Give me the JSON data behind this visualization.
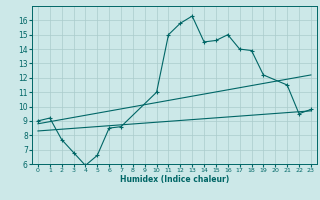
{
  "xlabel": "Humidex (Indice chaleur)",
  "ylabel": "",
  "bg_color": "#cce8e8",
  "grid_color": "#aacccc",
  "line_color": "#006666",
  "xlim": [
    -0.5,
    23.5
  ],
  "ylim": [
    6,
    17
  ],
  "xticks": [
    0,
    1,
    2,
    3,
    4,
    5,
    6,
    7,
    8,
    9,
    10,
    11,
    12,
    13,
    14,
    15,
    16,
    17,
    18,
    19,
    20,
    21,
    22,
    23
  ],
  "yticks": [
    6,
    7,
    8,
    9,
    10,
    11,
    12,
    13,
    14,
    15,
    16
  ],
  "line1_x": [
    0,
    1,
    2,
    3,
    4,
    5,
    6,
    7,
    10,
    11,
    12,
    13,
    14,
    15,
    16,
    17,
    18,
    19,
    21,
    22,
    23
  ],
  "line1_y": [
    9.0,
    9.2,
    7.7,
    6.8,
    5.9,
    6.6,
    8.5,
    8.6,
    11.0,
    15.0,
    15.8,
    16.3,
    14.5,
    14.6,
    15.0,
    14.0,
    13.9,
    12.2,
    11.5,
    9.5,
    9.8
  ],
  "line2_x": [
    0,
    23
  ],
  "line2_y": [
    8.8,
    12.2
  ],
  "line3_x": [
    0,
    23
  ],
  "line3_y": [
    8.3,
    9.7
  ]
}
